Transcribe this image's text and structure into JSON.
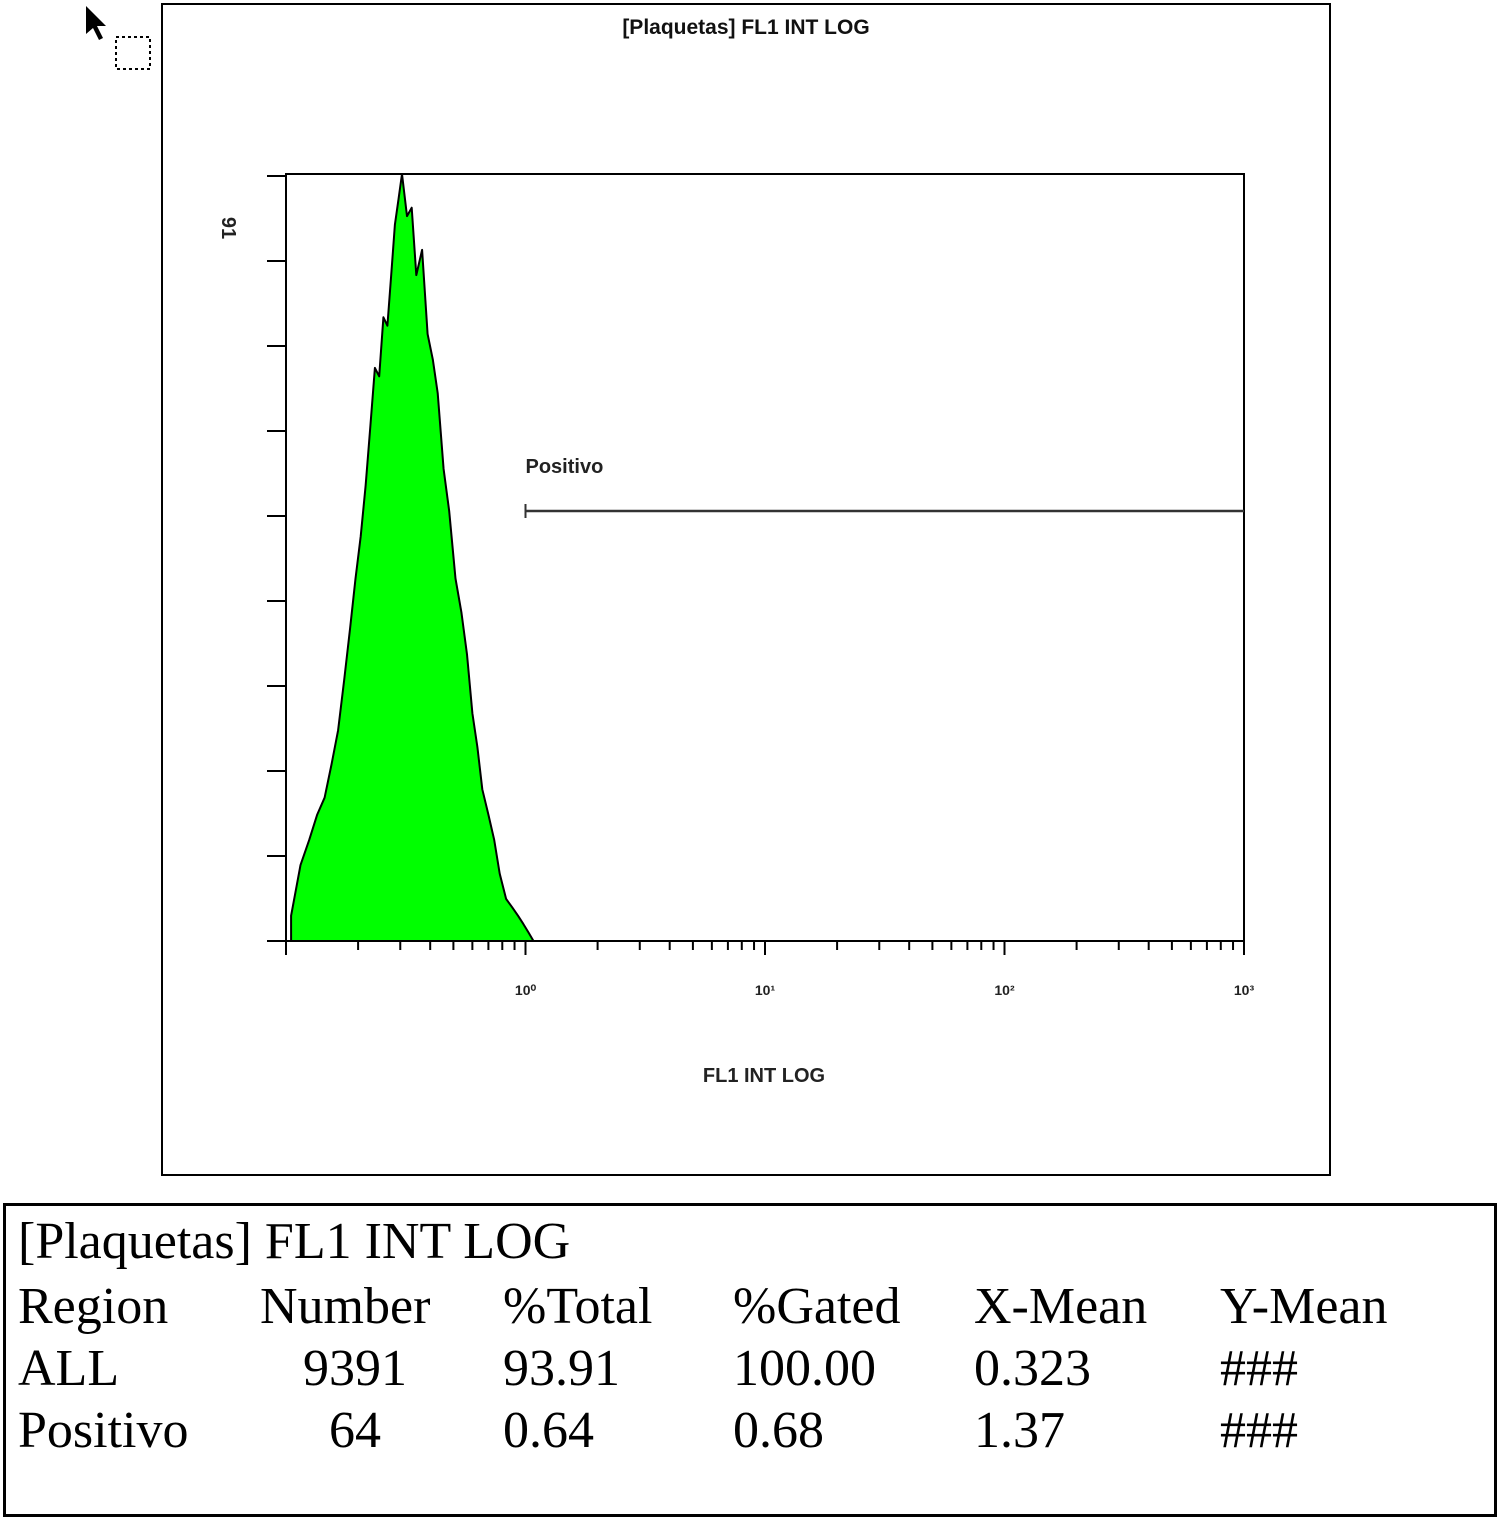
{
  "chart_data": {
    "type": "area",
    "title": "[Plaquetas] FL1 INT LOG",
    "xlabel": "FL1 INT LOG",
    "ylabel": "",
    "x_scale": "log",
    "xlim": [
      0.1,
      1000
    ],
    "ylim": [
      0,
      91
    ],
    "y_max_label": "91",
    "x_ticks": [
      1,
      10,
      100,
      1000
    ],
    "x_tick_labels": [
      "10⁰",
      "10¹",
      "10²",
      "10³"
    ],
    "fill_color": "#00ff00",
    "outline_color": "#000000",
    "series": [
      {
        "x": [
          0.105,
          0.115,
          0.125,
          0.135,
          0.145,
          0.155,
          0.165,
          0.175,
          0.185,
          0.195,
          0.205,
          0.215,
          0.225,
          0.235,
          0.245,
          0.255,
          0.265,
          0.275,
          0.285,
          0.295,
          0.305,
          0.32,
          0.335,
          0.35,
          0.37,
          0.39,
          0.41,
          0.43,
          0.455,
          0.48,
          0.51,
          0.54,
          0.57,
          0.6,
          0.63,
          0.66,
          0.7,
          0.74,
          0.78,
          0.83,
          0.88,
          0.93,
          0.98,
          1.03,
          1.08
        ],
        "y": [
          3,
          9,
          12,
          15,
          17,
          21,
          25,
          31,
          37,
          43,
          48,
          54,
          61,
          68,
          67,
          74,
          73,
          79,
          85,
          88,
          91,
          86,
          87,
          79,
          82,
          72,
          69,
          65,
          56,
          51,
          43,
          39,
          34,
          27,
          23,
          18,
          15,
          12,
          8,
          5,
          4,
          3,
          2,
          1,
          0
        ]
      }
    ],
    "regions": [
      {
        "name": "Positivo",
        "x_start": 1.0,
        "x_end": 1000
      }
    ]
  },
  "stats": {
    "title": "[Plaquetas] FL1 INT LOG",
    "columns": [
      "Region",
      "Number",
      "%Total",
      "%Gated",
      "X-Mean",
      "Y-Mean"
    ],
    "rows": [
      [
        "ALL",
        "9391",
        "93.91",
        "100.00",
        "0.323",
        "###"
      ],
      [
        "Positivo",
        "64",
        "0.64",
        "0.68",
        "1.37",
        "###"
      ]
    ]
  }
}
